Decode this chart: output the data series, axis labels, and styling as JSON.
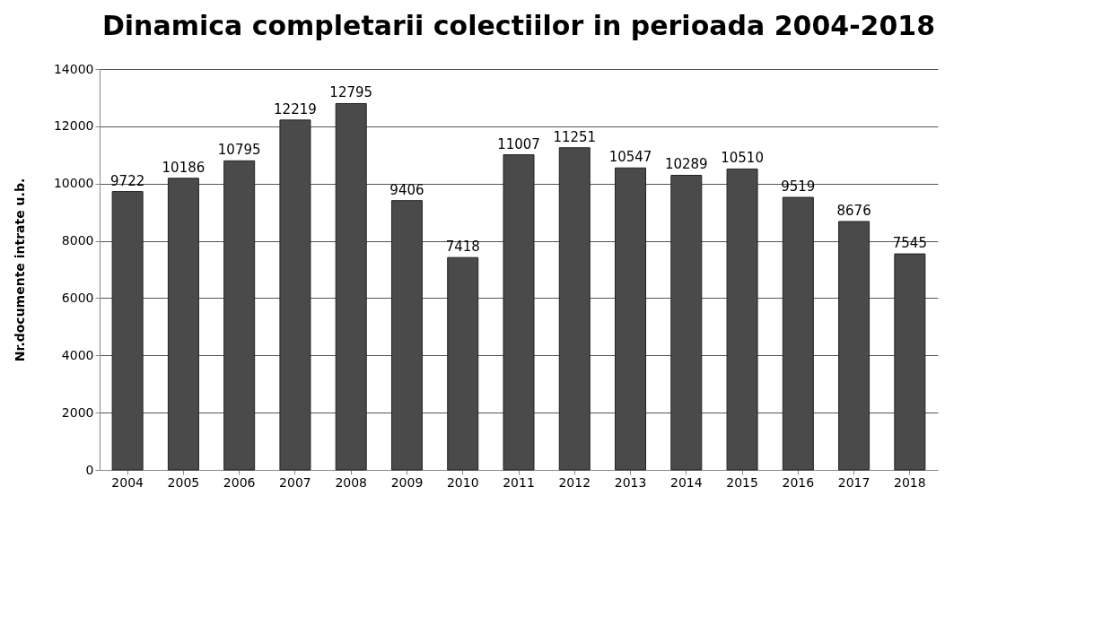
{
  "chart_data": {
    "type": "bar",
    "title": "Dinamica completarii colectiilor in perioada 2004-2018",
    "ylabel": "Nr.documente intrate u.b.",
    "categories": [
      "2004",
      "2005",
      "2006",
      "2007",
      "2008",
      "2009",
      "2010",
      "2011",
      "2012",
      "2013",
      "2014",
      "2015",
      "2016",
      "2017",
      "2018"
    ],
    "values": [
      9722,
      10186,
      10795,
      12219,
      12795,
      9406,
      7418,
      11007,
      11251,
      10547,
      10289,
      10510,
      9519,
      8676,
      7545
    ],
    "color": "#4a4a4a",
    "ylim": [
      0,
      14000
    ],
    "yticks": [
      0,
      2000,
      4000,
      6000,
      8000,
      10000,
      12000,
      14000
    ],
    "grid": "y",
    "data_labels": true
  }
}
